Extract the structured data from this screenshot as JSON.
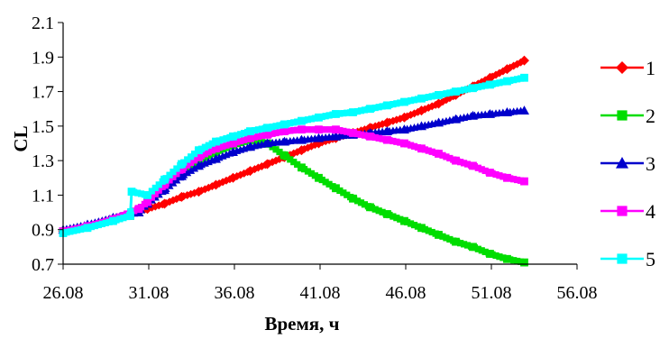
{
  "chart_data": {
    "type": "line",
    "xlabel": "Время, ч",
    "ylabel": "CL",
    "xlim": [
      26.08,
      56.08
    ],
    "ylim": [
      0.7,
      2.1
    ],
    "x_ticks": [
      "26.08",
      "31.08",
      "36.08",
      "41.08",
      "46.08",
      "51.08",
      "56.08"
    ],
    "y_ticks": [
      "0.7",
      "0.9",
      "1.1",
      "1.3",
      "1.5",
      "1.7",
      "1.9",
      "2.1"
    ],
    "grid": false,
    "legend_position": "right",
    "series": [
      {
        "name": "1",
        "color": "#ff0000",
        "marker": "diamond",
        "points": [
          [
            26.08,
            0.89
          ],
          [
            27.5,
            0.92
          ],
          [
            29,
            0.96
          ],
          [
            30.5,
            1.01
          ],
          [
            31,
            1.02
          ],
          [
            32,
            1.05
          ],
          [
            33,
            1.09
          ],
          [
            34,
            1.12
          ],
          [
            35,
            1.16
          ],
          [
            36,
            1.2
          ],
          [
            37,
            1.24
          ],
          [
            38,
            1.28
          ],
          [
            39,
            1.32
          ],
          [
            40,
            1.36
          ],
          [
            41,
            1.4
          ],
          [
            42,
            1.43
          ],
          [
            43,
            1.46
          ],
          [
            44,
            1.49
          ],
          [
            45,
            1.52
          ],
          [
            46,
            1.55
          ],
          [
            47,
            1.59
          ],
          [
            48,
            1.63
          ],
          [
            49,
            1.68
          ],
          [
            50,
            1.73
          ],
          [
            51,
            1.78
          ],
          [
            52,
            1.83
          ],
          [
            53,
            1.88
          ]
        ]
      },
      {
        "name": "2",
        "color": "#00dd00",
        "marker": "square",
        "points": [
          [
            26.08,
            0.89
          ],
          [
            27.5,
            0.92
          ],
          [
            29,
            0.96
          ],
          [
            30,
            0.98
          ],
          [
            31,
            1.06
          ],
          [
            32,
            1.15
          ],
          [
            33,
            1.24
          ],
          [
            34,
            1.3
          ],
          [
            35,
            1.35
          ],
          [
            36,
            1.39
          ],
          [
            37,
            1.42
          ],
          [
            38,
            1.4
          ],
          [
            39,
            1.33
          ],
          [
            40,
            1.26
          ],
          [
            41,
            1.2
          ],
          [
            42,
            1.14
          ],
          [
            43,
            1.08
          ],
          [
            44,
            1.03
          ],
          [
            45,
            0.99
          ],
          [
            46,
            0.95
          ],
          [
            47,
            0.91
          ],
          [
            48,
            0.87
          ],
          [
            49,
            0.83
          ],
          [
            50,
            0.8
          ],
          [
            51,
            0.76
          ],
          [
            52,
            0.73
          ],
          [
            53,
            0.71
          ]
        ]
      },
      {
        "name": "3",
        "color": "#0000cc",
        "marker": "triangle",
        "points": [
          [
            26.08,
            0.9
          ],
          [
            27.5,
            0.93
          ],
          [
            29,
            0.97
          ],
          [
            30.5,
            1.0
          ],
          [
            31,
            1.05
          ],
          [
            32,
            1.13
          ],
          [
            33,
            1.21
          ],
          [
            34,
            1.27
          ],
          [
            35,
            1.31
          ],
          [
            36,
            1.35
          ],
          [
            37,
            1.38
          ],
          [
            38,
            1.4
          ],
          [
            39,
            1.41
          ],
          [
            40,
            1.42
          ],
          [
            41,
            1.43
          ],
          [
            42,
            1.44
          ],
          [
            43,
            1.45
          ],
          [
            44,
            1.46
          ],
          [
            45,
            1.47
          ],
          [
            46,
            1.48
          ],
          [
            47,
            1.5
          ],
          [
            48,
            1.52
          ],
          [
            49,
            1.54
          ],
          [
            50,
            1.56
          ],
          [
            51,
            1.57
          ],
          [
            52,
            1.58
          ],
          [
            53,
            1.59
          ]
        ]
      },
      {
        "name": "4",
        "color": "#ff00ff",
        "marker": "square",
        "points": [
          [
            26.08,
            0.89
          ],
          [
            27.5,
            0.92
          ],
          [
            29,
            0.96
          ],
          [
            30.5,
            1.02
          ],
          [
            31,
            1.06
          ],
          [
            32,
            1.16
          ],
          [
            33,
            1.25
          ],
          [
            34,
            1.32
          ],
          [
            35,
            1.37
          ],
          [
            36,
            1.4
          ],
          [
            37,
            1.43
          ],
          [
            38,
            1.45
          ],
          [
            39,
            1.47
          ],
          [
            40,
            1.48
          ],
          [
            41,
            1.48
          ],
          [
            42,
            1.48
          ],
          [
            43,
            1.46
          ],
          [
            44,
            1.44
          ],
          [
            45,
            1.42
          ],
          [
            46,
            1.4
          ],
          [
            47,
            1.37
          ],
          [
            48,
            1.34
          ],
          [
            49,
            1.3
          ],
          [
            50,
            1.27
          ],
          [
            51,
            1.23
          ],
          [
            52,
            1.2
          ],
          [
            53,
            1.18
          ]
        ]
      },
      {
        "name": "5",
        "color": "#00ffff",
        "marker": "square",
        "points": [
          [
            26.08,
            0.88
          ],
          [
            27.5,
            0.91
          ],
          [
            29,
            0.95
          ],
          [
            30,
            0.98
          ],
          [
            30.08,
            1.12
          ],
          [
            31,
            1.1
          ],
          [
            32,
            1.19
          ],
          [
            33,
            1.28
          ],
          [
            34,
            1.36
          ],
          [
            35,
            1.41
          ],
          [
            36,
            1.44
          ],
          [
            37,
            1.47
          ],
          [
            38,
            1.49
          ],
          [
            39,
            1.51
          ],
          [
            40,
            1.53
          ],
          [
            41,
            1.55
          ],
          [
            42,
            1.57
          ],
          [
            43,
            1.58
          ],
          [
            44,
            1.6
          ],
          [
            45,
            1.62
          ],
          [
            46,
            1.64
          ],
          [
            47,
            1.66
          ],
          [
            48,
            1.68
          ],
          [
            49,
            1.7
          ],
          [
            50,
            1.72
          ],
          [
            51,
            1.74
          ],
          [
            52,
            1.76
          ],
          [
            53,
            1.78
          ]
        ]
      }
    ]
  }
}
